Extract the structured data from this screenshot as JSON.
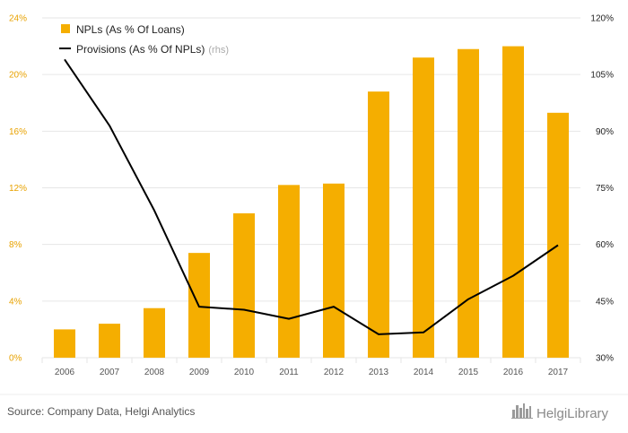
{
  "colors": {
    "bar": "#f5ae00",
    "line": "#000000",
    "grid": "#e6e6e6",
    "left_axis_text": "#e8a200",
    "right_axis_text": "#222222"
  },
  "source": "Source: Company Data, Helgi Analytics",
  "brand": "HelgiLibrary",
  "brand_icon": "city-skyline-icon",
  "chart_data": {
    "type": "bar",
    "categories": [
      "2006",
      "2007",
      "2008",
      "2009",
      "2010",
      "2011",
      "2012",
      "2013",
      "2014",
      "2015",
      "2016",
      "2017"
    ],
    "series": [
      {
        "name": "NPLs (As % Of Loans)",
        "type": "bar",
        "axis": "left",
        "values": [
          2.0,
          2.4,
          3.5,
          7.4,
          10.2,
          12.2,
          12.3,
          18.8,
          21.2,
          21.8,
          22.0,
          17.3
        ]
      },
      {
        "name": "Provisions (As % Of NPLs)",
        "name_suffix": "(rhs)",
        "type": "line",
        "axis": "right",
        "values": [
          109,
          91.5,
          69,
          43.5,
          42.7,
          40.3,
          43.5,
          36.2,
          36.7,
          45.5,
          51.7,
          59.8
        ]
      }
    ],
    "y_left": {
      "ylim": [
        0,
        24
      ],
      "ticks": [
        "0%",
        "4%",
        "8%",
        "12%",
        "16%",
        "20%",
        "24%"
      ]
    },
    "y_right": {
      "ylim": [
        30,
        120
      ],
      "ticks": [
        "30%",
        "45%",
        "60%",
        "75%",
        "90%",
        "105%",
        "120%"
      ]
    },
    "grid": true,
    "legend": "top-left"
  }
}
